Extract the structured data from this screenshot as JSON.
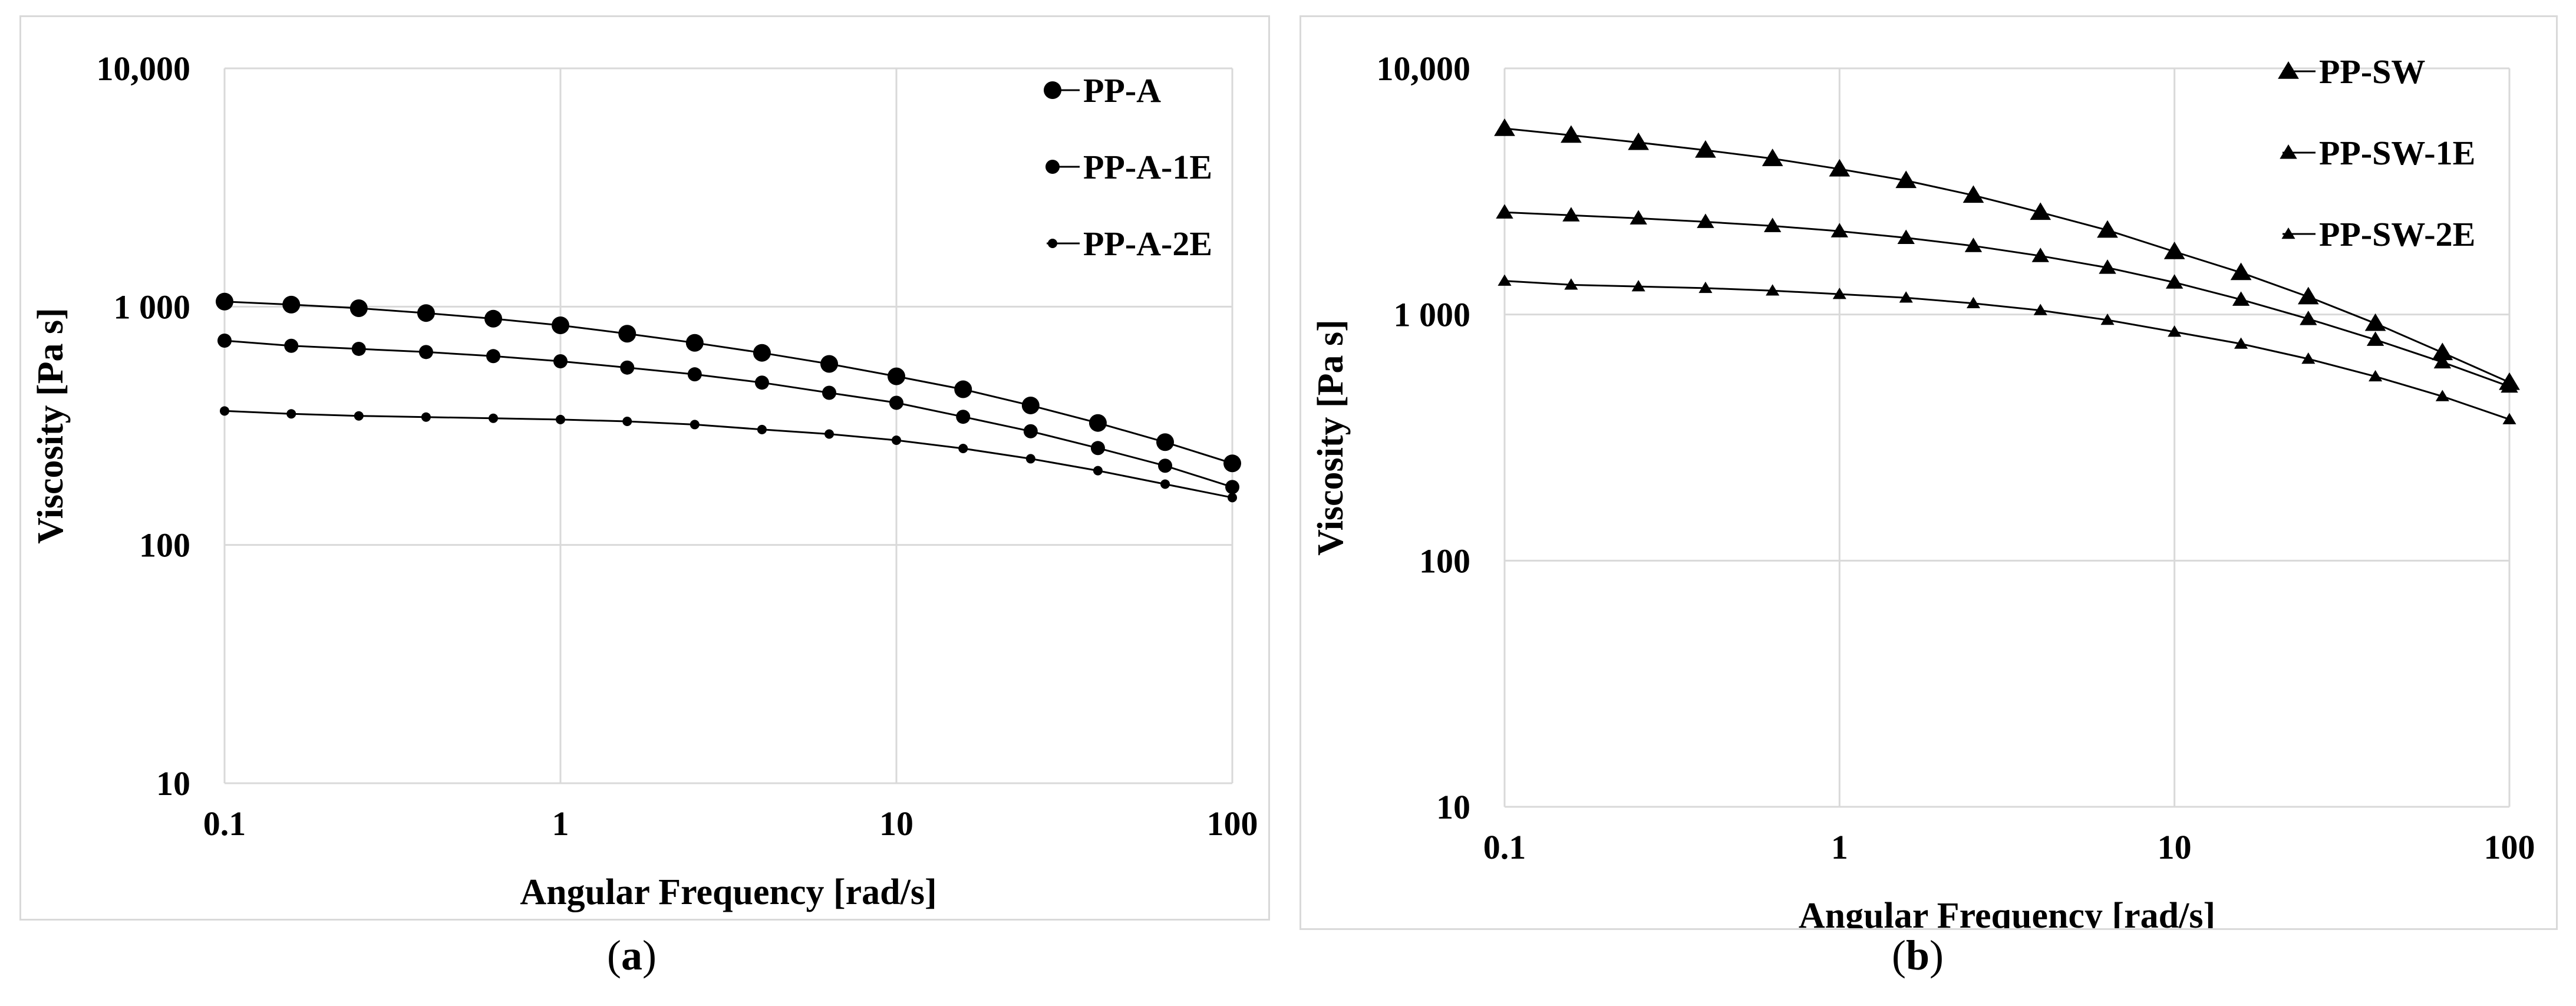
{
  "chart_data": [
    {
      "type": "line",
      "panel": "a",
      "caption": "(a)",
      "caption_letter": "a",
      "title": "",
      "xlabel": "Angular Frequency [rad/s]",
      "ylabel": "Viscosity [Pa s]",
      "xscale": "log",
      "yscale": "log",
      "xlim": [
        0.1,
        100
      ],
      "ylim": [
        10,
        10000
      ],
      "xticks": [
        0.1,
        1,
        10,
        100
      ],
      "xtick_labels": [
        "0.1",
        "1",
        "10",
        "100"
      ],
      "yticks": [
        10,
        100,
        1000,
        10000
      ],
      "ytick_labels": [
        "10",
        "100",
        "1 000",
        "10,000"
      ],
      "grid": true,
      "legend_position": "top-right",
      "x": [
        0.1,
        0.158,
        0.251,
        0.398,
        0.631,
        1,
        1.58,
        2.51,
        3.98,
        6.31,
        10,
        15.8,
        25.1,
        39.8,
        63.1,
        100
      ],
      "series": [
        {
          "name": "PP-A",
          "marker": "circle",
          "marker_size": "large",
          "values": [
            1050,
            1020,
            985,
            940,
            890,
            835,
            770,
            705,
            640,
            575,
            510,
            450,
            385,
            325,
            270,
            220
          ]
        },
        {
          "name": "PP-A-1E",
          "marker": "circle",
          "marker_size": "medium",
          "values": [
            720,
            685,
            665,
            645,
            620,
            590,
            555,
            520,
            480,
            435,
            395,
            345,
            300,
            255,
            215,
            175
          ]
        },
        {
          "name": "PP-A-2E",
          "marker": "circle",
          "marker_size": "small",
          "values": [
            365,
            355,
            348,
            344,
            340,
            336,
            330,
            320,
            305,
            292,
            275,
            254,
            230,
            205,
            180,
            158
          ]
        }
      ]
    },
    {
      "type": "line",
      "panel": "b",
      "caption": "(b)",
      "caption_letter": "b",
      "title": "",
      "xlabel": "Angular Frequency [rad/s]",
      "ylabel": "Viscosity [Pa s]",
      "xscale": "log",
      "yscale": "log",
      "xlim": [
        0.1,
        100
      ],
      "ylim": [
        10,
        10000
      ],
      "xticks": [
        0.1,
        1,
        10,
        100
      ],
      "xtick_labels": [
        "0.1",
        "1",
        "10",
        "100"
      ],
      "yticks": [
        10,
        100,
        1000,
        10000
      ],
      "ytick_labels": [
        "10",
        "100",
        "1 000",
        "10,000"
      ],
      "grid": true,
      "legend_position": "top-right",
      "x": [
        0.1,
        0.158,
        0.251,
        0.398,
        0.631,
        1,
        1.58,
        2.51,
        3.98,
        6.31,
        10,
        15.8,
        25.1,
        39.8,
        63.1,
        100
      ],
      "series": [
        {
          "name": "PP-SW",
          "marker": "triangle",
          "marker_size": "large",
          "values": [
            5700,
            5350,
            5000,
            4650,
            4300,
            3900,
            3500,
            3050,
            2600,
            2200,
            1800,
            1480,
            1180,
            920,
            700,
            530
          ]
        },
        {
          "name": "PP-SW-1E",
          "marker": "triangle",
          "marker_size": "medium",
          "values": [
            2600,
            2530,
            2460,
            2380,
            2290,
            2180,
            2050,
            1900,
            1730,
            1550,
            1350,
            1150,
            960,
            790,
            640,
            510
          ]
        },
        {
          "name": "PP-SW-2E",
          "marker": "triangle",
          "marker_size": "small",
          "values": [
            1370,
            1320,
            1300,
            1280,
            1250,
            1210,
            1170,
            1110,
            1040,
            950,
            850,
            760,
            660,
            560,
            465,
            375
          ]
        }
      ]
    }
  ]
}
